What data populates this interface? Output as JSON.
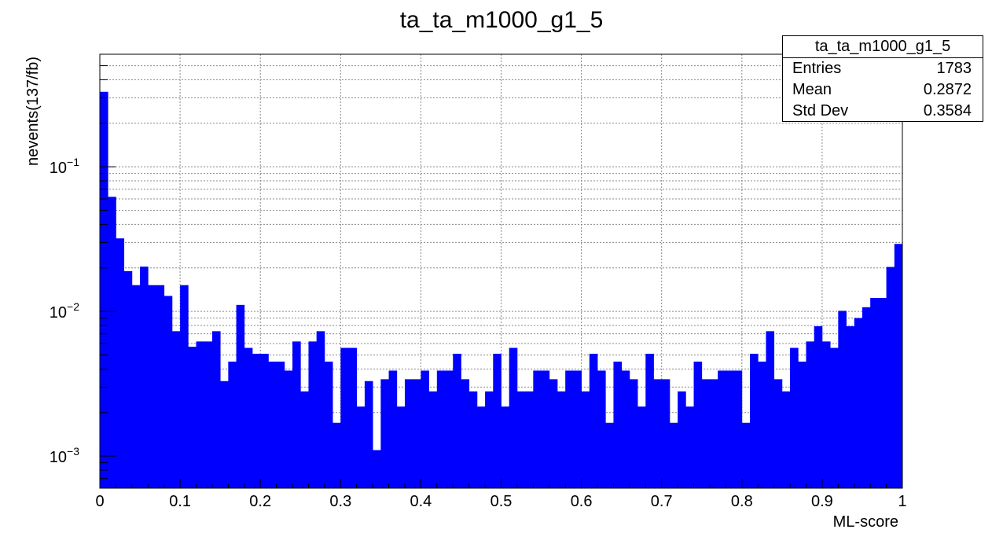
{
  "chart_data": {
    "type": "bar",
    "title": "ta_ta_m1000_g1_5",
    "xlabel": "ML-score",
    "ylabel": "nevents(137/fb)",
    "xlim": [
      0,
      1
    ],
    "ylim": [
      0.0006,
      0.6
    ],
    "log_y": true,
    "grid": true,
    "bar_color": "#0000ff",
    "bin_edges_start": 0,
    "bin_width": 0.01,
    "x_ticks": [
      "0",
      "0.1",
      "0.2",
      "0.3",
      "0.4",
      "0.5",
      "0.6",
      "0.7",
      "0.8",
      "0.9",
      "1"
    ],
    "y_ticks": [
      {
        "value": 0.001,
        "base": "10",
        "exp": "−3"
      },
      {
        "value": 0.01,
        "base": "10",
        "exp": "−2"
      },
      {
        "value": 0.1,
        "base": "10",
        "exp": "−1"
      }
    ],
    "values": [
      0.33,
      0.062,
      0.032,
      0.019,
      0.0152,
      0.0204,
      0.0152,
      0.0152,
      0.0128,
      0.0073,
      0.0152,
      0.0057,
      0.0062,
      0.0062,
      0.0073,
      0.0033,
      0.0045,
      0.0111,
      0.0056,
      0.0051,
      0.0051,
      0.0045,
      0.0045,
      0.0039,
      0.0062,
      0.0028,
      0.0062,
      0.0073,
      0.0045,
      0.0017,
      0.0056,
      0.0056,
      0.0022,
      0.0033,
      0.0011,
      0.0034,
      0.0039,
      0.0022,
      0.0034,
      0.0034,
      0.0039,
      0.0028,
      0.0039,
      0.0039,
      0.0051,
      0.0034,
      0.0028,
      0.0022,
      0.0028,
      0.0051,
      0.0022,
      0.0056,
      0.0028,
      0.0028,
      0.0039,
      0.0039,
      0.0034,
      0.0028,
      0.0039,
      0.0039,
      0.0028,
      0.0051,
      0.0039,
      0.0017,
      0.0045,
      0.0039,
      0.0034,
      0.0022,
      0.0051,
      0.0034,
      0.0034,
      0.0017,
      0.0028,
      0.0022,
      0.0045,
      0.0034,
      0.0034,
      0.0039,
      0.0039,
      0.0039,
      0.0017,
      0.0051,
      0.0045,
      0.0073,
      0.0034,
      0.0028,
      0.0056,
      0.0045,
      0.0062,
      0.0079,
      0.0062,
      0.0056,
      0.0101,
      0.0079,
      0.009,
      0.0107,
      0.0124,
      0.0124,
      0.0203,
      0.0293
    ]
  },
  "stats": {
    "title": "ta_ta_m1000_g1_5",
    "rows": [
      {
        "label": "Entries",
        "value": "1783"
      },
      {
        "label": "Mean",
        "value": "0.2872"
      },
      {
        "label": "Std Dev",
        "value": "0.3584"
      }
    ]
  }
}
